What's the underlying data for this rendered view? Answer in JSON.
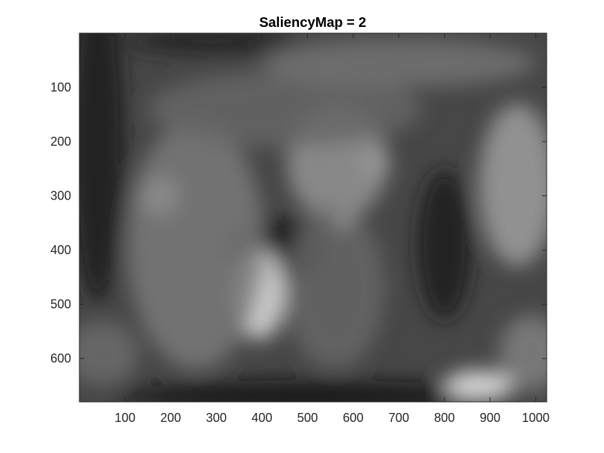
{
  "chart_data": {
    "type": "heatmap",
    "title": "SaliencyMap = 2",
    "colormap": "gray",
    "xlim": [
      0,
      1024
    ],
    "ylim": [
      0,
      680
    ],
    "y_direction": "top-down",
    "x_ticks": [
      100,
      200,
      300,
      400,
      500,
      600,
      700,
      800,
      900,
      1000
    ],
    "y_ticks": [
      100,
      200,
      300,
      400,
      500,
      600
    ],
    "x_tick_labels": [
      "100",
      "200",
      "300",
      "400",
      "500",
      "600",
      "700",
      "800",
      "900",
      "1000"
    ],
    "y_tick_labels": [
      "100",
      "200",
      "300",
      "400",
      "500",
      "600"
    ],
    "background_level": 0.28,
    "bright_regions": [
      {
        "cx": 175,
        "cy": 300,
        "rx": 45,
        "ry": 38,
        "level": 0.95
      },
      {
        "cx": 395,
        "cy": 480,
        "rx": 55,
        "ry": 85,
        "level": 0.88
      },
      {
        "cx": 875,
        "cy": 650,
        "rx": 75,
        "ry": 28,
        "level": 0.92
      },
      {
        "cx": 650,
        "cy": 240,
        "rx": 30,
        "ry": 30,
        "level": 0.72
      },
      {
        "cx": 565,
        "cy": 240,
        "rx": 110,
        "ry": 105,
        "level": 0.58
      },
      {
        "cx": 960,
        "cy": 280,
        "rx": 85,
        "ry": 150,
        "level": 0.62
      },
      {
        "cx": 255,
        "cy": 390,
        "rx": 150,
        "ry": 230,
        "level": 0.48
      },
      {
        "cx": 560,
        "cy": 470,
        "rx": 110,
        "ry": 150,
        "level": 0.4
      },
      {
        "cx": 450,
        "cy": 140,
        "rx": 300,
        "ry": 70,
        "level": 0.4
      },
      {
        "cx": 700,
        "cy": 55,
        "rx": 300,
        "ry": 45,
        "level": 0.45
      },
      {
        "cx": 50,
        "cy": 590,
        "rx": 80,
        "ry": 60,
        "level": 0.42
      },
      {
        "cx": 990,
        "cy": 590,
        "rx": 70,
        "ry": 70,
        "level": 0.5
      },
      {
        "cx": 580,
        "cy": 345,
        "rx": 14,
        "ry": 14,
        "level": 0.7
      }
    ],
    "dark_regions": [
      {
        "cx": 430,
        "cy": 400,
        "rx": 110,
        "ry": 60,
        "level": 0.08
      },
      {
        "cx": 800,
        "cy": 390,
        "rx": 60,
        "ry": 140,
        "level": 0.1
      },
      {
        "cx": 40,
        "cy": 200,
        "rx": 60,
        "ry": 300,
        "level": 0.1
      },
      {
        "cx": 500,
        "cy": 670,
        "rx": 420,
        "ry": 30,
        "level": 0.08
      },
      {
        "cx": 290,
        "cy": 15,
        "rx": 190,
        "ry": 25,
        "level": 0.12
      }
    ]
  }
}
